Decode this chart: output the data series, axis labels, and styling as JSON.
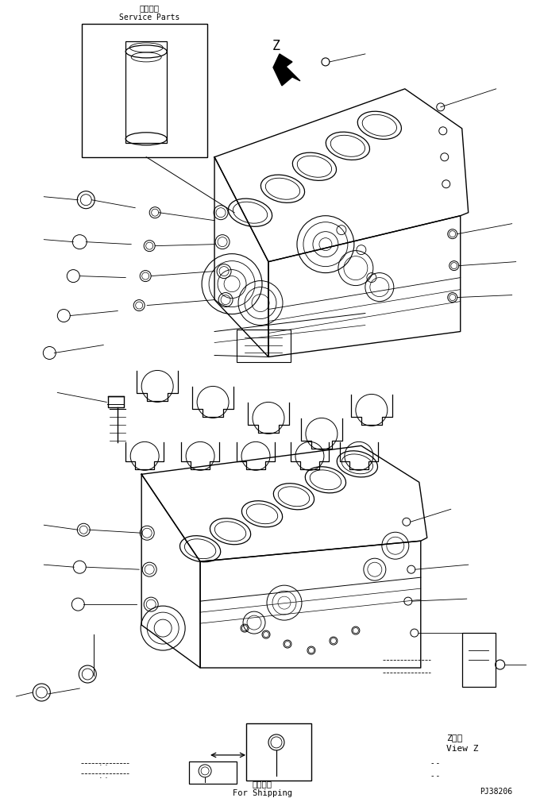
{
  "title_jp": "補給専用",
  "title_en": "Service Parts",
  "bg_color": "#ffffff",
  "line_color": "#000000",
  "fig_width": 6.85,
  "fig_height": 10.05,
  "dpi": 100,
  "bottom_texts": {
    "z_view_jp": "Z　視",
    "z_view_en": "View Z",
    "shipping_jp": "運携部品",
    "shipping_en": "For Shipping",
    "part_no": "PJ38206"
  }
}
